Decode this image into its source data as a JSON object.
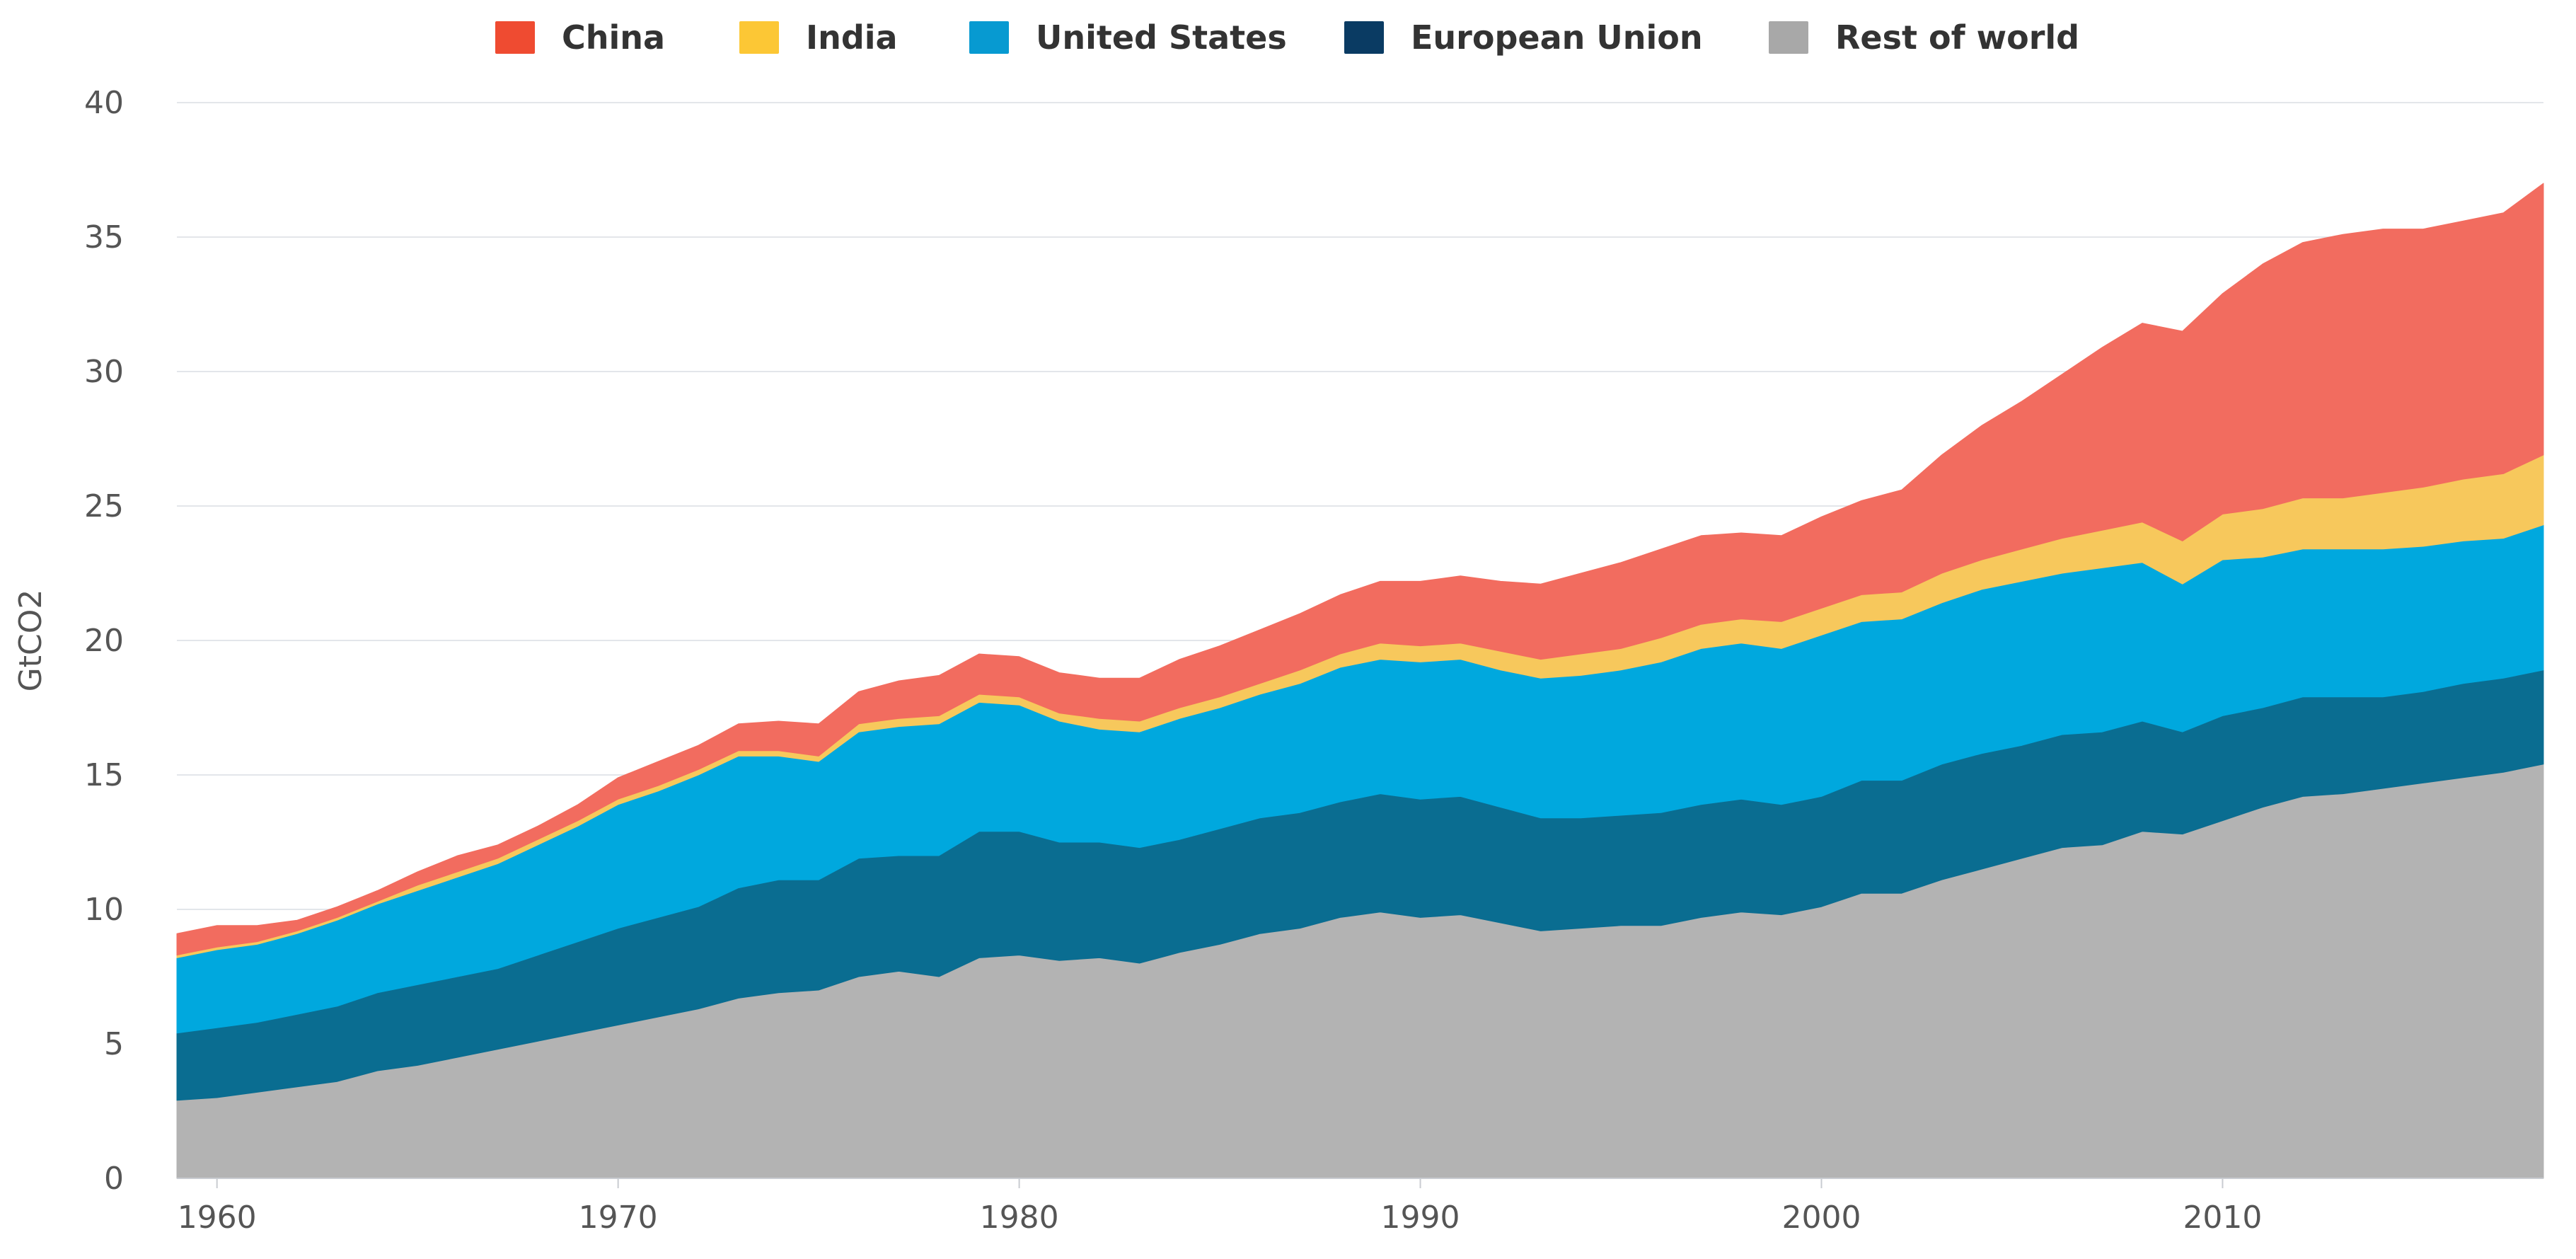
{
  "chart_data": {
    "type": "area",
    "stacked": true,
    "title": "",
    "xlabel": "",
    "ylabel": "GtCO2",
    "xlim": [
      1959,
      2018
    ],
    "ylim": [
      0,
      40
    ],
    "yticks": [
      0,
      5,
      10,
      15,
      20,
      25,
      30,
      35,
      40
    ],
    "xticks": [
      1960,
      1970,
      1980,
      1990,
      2000,
      2010
    ],
    "grid": true,
    "legend_position": "top",
    "x": [
      1959,
      1960,
      1961,
      1962,
      1963,
      1964,
      1965,
      1966,
      1967,
      1968,
      1969,
      1970,
      1971,
      1972,
      1973,
      1974,
      1975,
      1976,
      1977,
      1978,
      1979,
      1980,
      1981,
      1982,
      1983,
      1984,
      1985,
      1986,
      1987,
      1988,
      1989,
      1990,
      1991,
      1992,
      1993,
      1994,
      1995,
      1996,
      1997,
      1998,
      1999,
      2000,
      2001,
      2002,
      2003,
      2004,
      2005,
      2006,
      2007,
      2008,
      2009,
      2010,
      2011,
      2012,
      2013,
      2014,
      2015,
      2016,
      2017,
      2018
    ],
    "series": [
      {
        "name": "Rest of world",
        "color": "#b3b3b3",
        "values": [
          2.9,
          3.0,
          3.2,
          3.4,
          3.6,
          4.0,
          4.2,
          4.5,
          4.8,
          5.1,
          5.4,
          5.7,
          6.0,
          6.3,
          6.7,
          6.9,
          7.0,
          7.5,
          7.7,
          7.5,
          8.2,
          8.3,
          8.1,
          8.2,
          8.0,
          8.4,
          8.7,
          9.1,
          9.3,
          9.7,
          9.9,
          9.7,
          9.8,
          9.5,
          9.2,
          9.3,
          9.4,
          9.4,
          9.7,
          9.9,
          9.8,
          10.1,
          10.6,
          10.6,
          11.1,
          11.5,
          11.9,
          12.3,
          12.4,
          12.9,
          12.8,
          13.3,
          13.8,
          14.2,
          14.3,
          14.5,
          14.7,
          14.9,
          15.1,
          15.4
        ]
      },
      {
        "name": "European Union",
        "color": "#0a6d91",
        "values": [
          2.5,
          2.6,
          2.6,
          2.7,
          2.8,
          2.9,
          3.0,
          3.0,
          3.0,
          3.2,
          3.4,
          3.6,
          3.7,
          3.8,
          4.1,
          4.2,
          4.1,
          4.4,
          4.3,
          4.5,
          4.7,
          4.6,
          4.4,
          4.3,
          4.3,
          4.2,
          4.3,
          4.3,
          4.3,
          4.3,
          4.4,
          4.4,
          4.4,
          4.3,
          4.2,
          4.1,
          4.1,
          4.2,
          4.2,
          4.2,
          4.1,
          4.1,
          4.2,
          4.2,
          4.3,
          4.3,
          4.2,
          4.2,
          4.2,
          4.1,
          3.8,
          3.9,
          3.7,
          3.7,
          3.6,
          3.4,
          3.4,
          3.5,
          3.5,
          3.5
        ]
      },
      {
        "name": "United States",
        "color": "#00a8de",
        "values": [
          2.8,
          2.9,
          2.9,
          3.0,
          3.2,
          3.3,
          3.5,
          3.7,
          3.9,
          4.1,
          4.3,
          4.6,
          4.7,
          4.9,
          4.9,
          4.6,
          4.4,
          4.7,
          4.8,
          4.9,
          4.8,
          4.7,
          4.5,
          4.2,
          4.3,
          4.5,
          4.5,
          4.6,
          4.8,
          5.0,
          5.0,
          5.1,
          5.1,
          5.1,
          5.2,
          5.3,
          5.4,
          5.6,
          5.8,
          5.8,
          5.8,
          6.0,
          5.9,
          6.0,
          6.0,
          6.1,
          6.1,
          6.0,
          6.1,
          5.9,
          5.5,
          5.8,
          5.6,
          5.5,
          5.5,
          5.5,
          5.4,
          5.3,
          5.2,
          5.4
        ]
      },
      {
        "name": "India",
        "color": "#f7c85c",
        "values": [
          0.1,
          0.1,
          0.1,
          0.1,
          0.1,
          0.1,
          0.2,
          0.2,
          0.2,
          0.2,
          0.2,
          0.2,
          0.2,
          0.2,
          0.2,
          0.2,
          0.2,
          0.3,
          0.3,
          0.3,
          0.3,
          0.3,
          0.3,
          0.4,
          0.4,
          0.4,
          0.4,
          0.4,
          0.5,
          0.5,
          0.6,
          0.6,
          0.6,
          0.7,
          0.7,
          0.8,
          0.8,
          0.9,
          0.9,
          0.9,
          1.0,
          1.0,
          1.0,
          1.0,
          1.1,
          1.1,
          1.2,
          1.3,
          1.4,
          1.5,
          1.6,
          1.7,
          1.8,
          1.9,
          1.9,
          2.1,
          2.2,
          2.3,
          2.4,
          2.6
        ]
      },
      {
        "name": "China",
        "color": "#f26c5f",
        "values": [
          0.8,
          0.8,
          0.6,
          0.4,
          0.4,
          0.4,
          0.5,
          0.6,
          0.5,
          0.5,
          0.6,
          0.8,
          0.9,
          0.9,
          1.0,
          1.1,
          1.2,
          1.2,
          1.4,
          1.5,
          1.5,
          1.5,
          1.5,
          1.5,
          1.6,
          1.8,
          1.9,
          2.0,
          2.1,
          2.2,
          2.3,
          2.4,
          2.5,
          2.6,
          2.8,
          3.0,
          3.2,
          3.3,
          3.3,
          3.2,
          3.2,
          3.4,
          3.5,
          3.8,
          4.4,
          5.0,
          5.5,
          6.1,
          6.8,
          7.4,
          7.8,
          8.2,
          9.1,
          9.5,
          9.8,
          9.8,
          9.6,
          9.6,
          9.7,
          10.1
        ]
      }
    ]
  },
  "legend": {
    "items": [
      {
        "label": "China",
        "color": "#ef4b31"
      },
      {
        "label": "India",
        "color": "#fcc735"
      },
      {
        "label": "United States",
        "color": "#079ad1"
      },
      {
        "label": "European Union",
        "color": "#0a3b63"
      },
      {
        "label": "Rest of world",
        "color": "#a8a8a8"
      }
    ]
  }
}
